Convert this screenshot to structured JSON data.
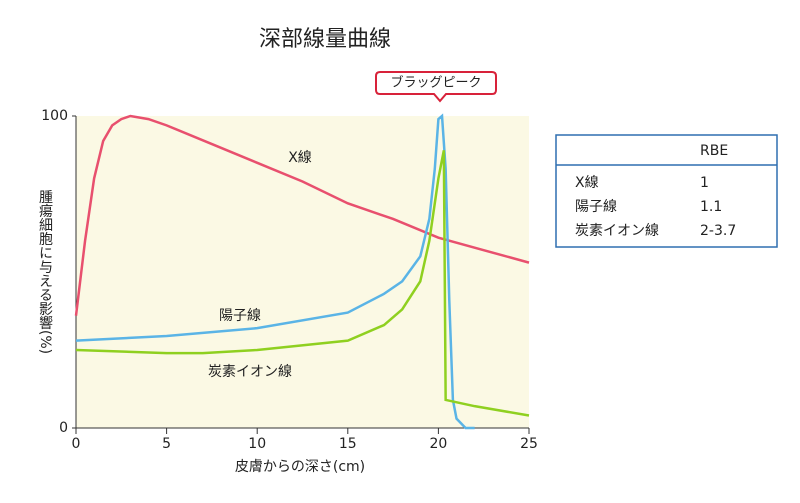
{
  "chart_data": {
    "type": "line",
    "title": "深部線量曲線",
    "xlabel": "皮膚からの深さ(cm)",
    "ylabel": "腫瘍細胞に与える影響(%)",
    "annotation": "ブラッグピーク",
    "xlim": [
      0,
      25
    ],
    "xticks": [
      0,
      5,
      10,
      15,
      20,
      25
    ],
    "ylim": [
      0,
      100
    ],
    "yticks": [
      0,
      100
    ],
    "series": [
      {
        "name": "X線",
        "color": "#e8506e",
        "x": [
          0,
          0.5,
          1,
          1.5,
          2,
          2.5,
          3,
          4,
          5,
          7.5,
          10,
          12.5,
          15,
          17.5,
          20,
          22.5,
          25
        ],
        "values": [
          36,
          60,
          80,
          92,
          97,
          99,
          100,
          99,
          97,
          91,
          85,
          79,
          72,
          67,
          61,
          57,
          53
        ]
      },
      {
        "name": "陽子線",
        "color": "#5ab4e6",
        "x": [
          0,
          5,
          10,
          15,
          17,
          18,
          19,
          19.5,
          19.8,
          20,
          20.2,
          20.4,
          20.6,
          20.8,
          21,
          21.5,
          22
        ],
        "values": [
          28,
          29.5,
          32,
          37,
          43,
          47,
          55,
          67,
          83,
          99,
          100,
          83,
          41,
          9,
          3,
          0,
          0
        ]
      },
      {
        "name": "炭素イオン線",
        "color": "#8fd020",
        "x": [
          0,
          5,
          7,
          10,
          15,
          17,
          18,
          19,
          19.5,
          20,
          20.3,
          20.4,
          22,
          25
        ],
        "values": [
          25,
          24,
          24,
          25,
          28,
          33,
          38,
          47,
          60,
          80,
          89,
          9,
          7,
          4
        ]
      }
    ]
  },
  "table": {
    "column": "RBE",
    "rows": [
      [
        "X線",
        "1"
      ],
      [
        "陽子線",
        "1.1"
      ],
      [
        "炭素イオン線",
        "2-3.7"
      ]
    ]
  }
}
